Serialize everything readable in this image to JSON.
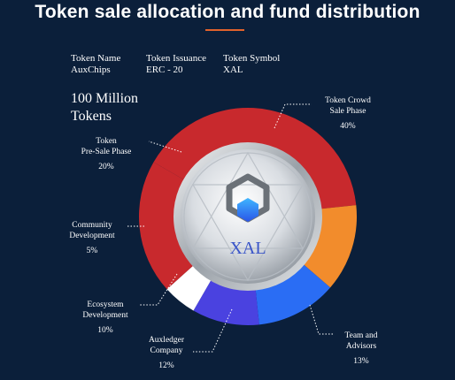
{
  "title": "Token sale allocation and fund distribution",
  "token_info": [
    {
      "label": "Token Name",
      "value": "AuxChips"
    },
    {
      "label": "Token Issuance",
      "value": "ERC - 20"
    },
    {
      "label": "Token Symbol",
      "value": "XAL"
    }
  ],
  "supply_text": "100 Million Tokens",
  "center_label": "XAL",
  "chart_data": {
    "type": "pie",
    "variant": "donut",
    "categories": [
      "Token Crowd Sale Phase",
      "Team and Advisors",
      "Auxledger Company",
      "Ecosystem Development",
      "Community Development",
      "Token Pre-Sale Phase"
    ],
    "values": [
      40,
      13,
      12,
      10,
      5,
      20
    ],
    "unit": "%",
    "colors": [
      "#c8292d",
      "#f28c2c",
      "#2a6df4",
      "#4a42e0",
      "#ffffff",
      "#c8292d"
    ]
  },
  "annotations": [
    {
      "line1": "Token Crowd",
      "line2": "Sale Phase",
      "pct": "40%"
    },
    {
      "line1": "Team and",
      "line2": "Advisors",
      "pct": "13%"
    },
    {
      "line1": "Auxledger",
      "line2": "Company",
      "pct": "12%"
    },
    {
      "line1": "Ecosystem",
      "line2": "Development",
      "pct": "10%"
    },
    {
      "line1": "Community",
      "line2": "Development",
      "pct": "5%"
    },
    {
      "line1": "Token",
      "line2": "Pre-Sale Phase",
      "pct": "20%"
    }
  ]
}
